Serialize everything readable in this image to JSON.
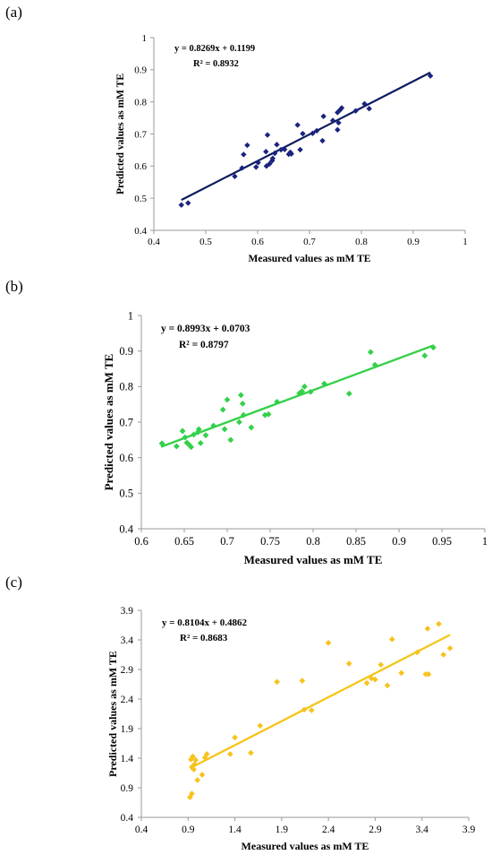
{
  "chart_data": [
    {
      "panel_label": "(a)",
      "type": "scatter",
      "color": "#1a237e",
      "line_color": "#0d1b5e",
      "marker": "diamond",
      "xlabel": "Measured values as mM TE",
      "ylabel": "Predicted values as mM TE",
      "xlim": [
        0.4,
        1
      ],
      "ylim": [
        0.4,
        1
      ],
      "xticks": [
        "0.4",
        "0.5",
        "0.6",
        "0.7",
        "0.8",
        "0.9",
        "1"
      ],
      "yticks": [
        "0.4",
        "0.5",
        "0.6",
        "0.7",
        "0.8",
        "0.9",
        "1"
      ],
      "trendline": {
        "slope": 0.8269,
        "intercept": 0.1199,
        "x_range": [
          0.453,
          0.933
        ]
      },
      "equation": "y = 0.8269x + 0.1199",
      "r2": "R² = 0.8932",
      "points": [
        [
          0.453,
          0.479
        ],
        [
          0.466,
          0.485
        ],
        [
          0.556,
          0.568
        ],
        [
          0.57,
          0.594
        ],
        [
          0.573,
          0.636
        ],
        [
          0.58,
          0.665
        ],
        [
          0.597,
          0.597
        ],
        [
          0.601,
          0.611
        ],
        [
          0.616,
          0.645
        ],
        [
          0.617,
          0.6
        ],
        [
          0.619,
          0.697
        ],
        [
          0.623,
          0.607
        ],
        [
          0.628,
          0.617
        ],
        [
          0.629,
          0.624
        ],
        [
          0.633,
          0.64
        ],
        [
          0.637,
          0.667
        ],
        [
          0.645,
          0.651
        ],
        [
          0.652,
          0.652
        ],
        [
          0.66,
          0.637
        ],
        [
          0.663,
          0.643
        ],
        [
          0.665,
          0.638
        ],
        [
          0.677,
          0.728
        ],
        [
          0.682,
          0.651
        ],
        [
          0.687,
          0.701
        ],
        [
          0.706,
          0.702
        ],
        [
          0.714,
          0.71
        ],
        [
          0.725,
          0.679
        ],
        [
          0.727,
          0.755
        ],
        [
          0.745,
          0.742
        ],
        [
          0.754,
          0.713
        ],
        [
          0.754,
          0.767
        ],
        [
          0.756,
          0.735
        ],
        [
          0.759,
          0.775
        ],
        [
          0.762,
          0.781
        ],
        [
          0.789,
          0.772
        ],
        [
          0.806,
          0.794
        ],
        [
          0.815,
          0.779
        ],
        [
          0.933,
          0.881
        ]
      ]
    },
    {
      "panel_label": "(b)",
      "type": "scatter",
      "color": "#33d14a",
      "line_color": "#35d14a",
      "marker": "diamond",
      "xlabel": "Measured values as mM TE",
      "ylabel": "Predicted values as mM TE",
      "xlim": [
        0.6,
        1
      ],
      "ylim": [
        0.4,
        1
      ],
      "xticks": [
        "0.6",
        "0.65",
        "0.7",
        "0.75",
        "0.8",
        "0.85",
        "0.9",
        "0.95",
        "1"
      ],
      "yticks": [
        "0.4",
        "0.5",
        "0.6",
        "0.7",
        "0.8",
        "0.9",
        "1"
      ],
      "trendline": {
        "slope": 0.8993,
        "intercept": 0.0703,
        "x_range": [
          0.623,
          0.94
        ]
      },
      "equation": "y = 0.8993x + 0.0703",
      "r2": "R² = 0.8797",
      "points": [
        [
          0.624,
          0.64
        ],
        [
          0.641,
          0.632
        ],
        [
          0.648,
          0.675
        ],
        [
          0.651,
          0.657
        ],
        [
          0.653,
          0.642
        ],
        [
          0.655,
          0.638
        ],
        [
          0.658,
          0.63
        ],
        [
          0.661,
          0.665
        ],
        [
          0.666,
          0.672
        ],
        [
          0.667,
          0.68
        ],
        [
          0.669,
          0.641
        ],
        [
          0.675,
          0.663
        ],
        [
          0.684,
          0.69
        ],
        [
          0.695,
          0.735
        ],
        [
          0.697,
          0.68
        ],
        [
          0.7,
          0.763
        ],
        [
          0.704,
          0.65
        ],
        [
          0.714,
          0.7
        ],
        [
          0.716,
          0.776
        ],
        [
          0.718,
          0.752
        ],
        [
          0.719,
          0.72
        ],
        [
          0.728,
          0.685
        ],
        [
          0.744,
          0.72
        ],
        [
          0.748,
          0.722
        ],
        [
          0.758,
          0.757
        ],
        [
          0.784,
          0.781
        ],
        [
          0.787,
          0.787
        ],
        [
          0.79,
          0.8
        ],
        [
          0.797,
          0.785
        ],
        [
          0.813,
          0.808
        ],
        [
          0.842,
          0.78
        ],
        [
          0.867,
          0.897
        ],
        [
          0.872,
          0.861
        ],
        [
          0.93,
          0.887
        ],
        [
          0.94,
          0.91
        ]
      ]
    },
    {
      "panel_label": "(c)",
      "type": "scatter",
      "color": "#f7c21c",
      "line_color": "#f5c518",
      "marker": "diamond",
      "xlabel": "Measured values as mM TE",
      "ylabel": "Predicted values as mM TE",
      "xlim": [
        0.4,
        3.9
      ],
      "ylim": [
        0.4,
        3.9
      ],
      "xticks": [
        "0.4",
        "0.9",
        "1.4",
        "1.9",
        "2.4",
        "2.9",
        "3.4",
        "3.9"
      ],
      "yticks": [
        "0.4",
        "0.9",
        "1.4",
        "1.9",
        "2.4",
        "2.9",
        "3.4",
        "3.9"
      ],
      "trendline": {
        "slope": 0.8104,
        "intercept": 0.4862,
        "x_range": [
          0.92,
          3.7
        ]
      },
      "equation": "y = 0.8104x + 0.4862",
      "r2": "R² = 0.8683",
      "points": [
        [
          0.92,
          0.74
        ],
        [
          0.94,
          0.8
        ],
        [
          0.93,
          1.38
        ],
        [
          0.94,
          1.25
        ],
        [
          0.95,
          1.43
        ],
        [
          0.96,
          1.21
        ],
        [
          0.97,
          1.3
        ],
        [
          0.98,
          1.37
        ],
        [
          1.0,
          1.03
        ],
        [
          1.05,
          1.12
        ],
        [
          1.08,
          1.41
        ],
        [
          1.1,
          1.47
        ],
        [
          1.35,
          1.47
        ],
        [
          1.4,
          1.75
        ],
        [
          1.57,
          1.49
        ],
        [
          1.67,
          1.95
        ],
        [
          1.85,
          2.69
        ],
        [
          2.12,
          2.71
        ],
        [
          2.14,
          2.22
        ],
        [
          2.22,
          2.21
        ],
        [
          2.4,
          3.35
        ],
        [
          2.62,
          3.0
        ],
        [
          2.81,
          2.67
        ],
        [
          2.86,
          2.75
        ],
        [
          2.9,
          2.73
        ],
        [
          2.96,
          2.98
        ],
        [
          3.03,
          2.63
        ],
        [
          3.08,
          3.41
        ],
        [
          3.18,
          2.84
        ],
        [
          3.35,
          3.19
        ],
        [
          3.44,
          2.82
        ],
        [
          3.46,
          3.59
        ],
        [
          3.47,
          2.82
        ],
        [
          3.58,
          3.67
        ],
        [
          3.63,
          3.15
        ],
        [
          3.7,
          3.26
        ]
      ]
    }
  ]
}
